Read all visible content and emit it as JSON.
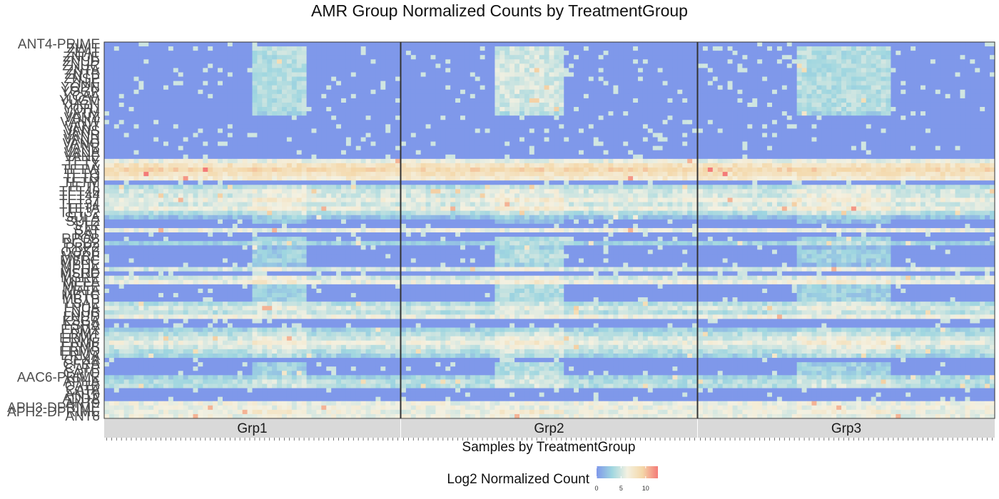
{
  "chart_data": {
    "type": "heatmap",
    "title": "AMR Group Normalized Counts by TreatmentGroup",
    "xlabel": "Samples by TreatmentGroup",
    "ylabel": "",
    "facets": [
      "Grp1",
      "Grp2",
      "Grp3"
    ],
    "samples_per_facet": 60,
    "rows": [
      "ANT4-PRIME",
      "ZWIT",
      "ZEAT",
      "ZNUE",
      "ZNUD",
      "ZNUC",
      "ZNTA",
      "ZNTB",
      "ZNSP",
      "ZNIF",
      "YODN",
      "YOGP",
      "YCAA",
      "YUGM",
      "YHGN",
      "YOHJ",
      "VATM",
      "VANY",
      "VANW",
      "VANT",
      "VANS",
      "VANR",
      "VANH",
      "VANO",
      "VANB",
      "VANA",
      "VANE",
      "TETY",
      "TETX",
      "TETW",
      "TETQ",
      "TETO",
      "TETM",
      "TETL",
      "TET40",
      "TET44",
      "TET37",
      "TET34",
      "TETA",
      "TET32",
      "SULA",
      "SUL2",
      "STR",
      "SAT",
      "RAT",
      "RPOB",
      "PGD2",
      "PBP2",
      "OQXB",
      "MPRF",
      "MVRC",
      "MPHE",
      "MPHA",
      "MSRD",
      "MSRE",
      "MEFA",
      "MEFE",
      "MATA",
      "MBTC",
      "MBTB",
      "LSAE",
      "LNUA",
      "LNUB",
      "LNUD",
      "KSGA",
      "FSRA",
      "ERMX",
      "ERMT",
      "ERMG",
      "ERMF",
      "ERMB",
      "ERMQ",
      "ERMA",
      "CFXA",
      "CFRA",
      "CATP",
      "CATQ",
      "AAC6-PRIME",
      "APHA",
      "CATB",
      "CATA",
      "ANT6",
      "ADDA",
      "ANT9",
      "APH3-DPRIME",
      "APH2-DPRIME",
      "ANT8"
    ],
    "shown_labels": [
      "ANT4-PRIME",
      "ZWIT",
      "ZEAT",
      "ZNUE",
      "ZNUD",
      "ZNUC",
      "ZNTA",
      "ZNTB",
      "ZNSP",
      "ZNIF",
      "YODN",
      "YOGP",
      "YCAA",
      "YUGM",
      "YHGN",
      "YOHJ",
      "VATM",
      "VANY",
      "VANW",
      "VANT",
      "VANS",
      "VANR",
      "VANH",
      "VANO",
      "VANB",
      "VANA",
      "VANE",
      "TETY",
      "TETX",
      "TETW",
      "TETQ",
      "TETO",
      "TETM",
      "TETL",
      "TET40",
      "TET44",
      "TET37",
      "TET34",
      "TETA",
      "TET32",
      "SULA",
      "SUL2",
      "STR",
      "SAT",
      "RAT",
      "RPOB",
      "PGD2",
      "PBP2",
      "OQXB",
      "MPRF",
      "MVRC",
      "MPHE",
      "MPHA",
      "MSRD",
      "MSRE",
      "MEFA",
      "MEFE",
      "MATA",
      "MBTC",
      "MBTB",
      "LSAE",
      "LNUA",
      "LNUB",
      "LNUD",
      "KSGA",
      "FSRA",
      "ERMX",
      "ERMT",
      "ERMG",
      "ERMF",
      "ERMB",
      "ERMQ",
      "ERMA",
      "CFXA",
      "CFRA",
      "CATP",
      "CATQ",
      "AAC6-PRIME",
      "APHA",
      "CATB",
      "CATA",
      "ANT6",
      "ADDA",
      "ANT9",
      "APH3-DPRIME",
      "APH2-DPRIME",
      "ANT8"
    ],
    "row_profiles": [
      {
        "base": 0,
        "c1": 0,
        "c2": 0,
        "c3": 0
      },
      {
        "base": 0,
        "c1": 4,
        "c2": 5,
        "c3": 4
      },
      {
        "base": 0,
        "c1": 4,
        "c2": 5,
        "c3": 4
      },
      {
        "base": 0,
        "c1": 4,
        "c2": 5,
        "c3": 4
      },
      {
        "base": 0,
        "c1": 4,
        "c2": 5,
        "c3": 4
      },
      {
        "base": 0,
        "c1": 4,
        "c2": 5,
        "c3": 4
      },
      {
        "base": 0,
        "c1": 4,
        "c2": 5,
        "c3": 4
      },
      {
        "base": 0,
        "c1": 4,
        "c2": 5,
        "c3": 4
      },
      {
        "base": 0,
        "c1": 4,
        "c2": 5,
        "c3": 4
      },
      {
        "base": 0,
        "c1": 4,
        "c2": 5,
        "c3": 4
      },
      {
        "base": 0,
        "c1": 4,
        "c2": 5,
        "c3": 4
      },
      {
        "base": 0,
        "c1": 4,
        "c2": 5,
        "c3": 4
      },
      {
        "base": 0,
        "c1": 4,
        "c2": 5,
        "c3": 4
      },
      {
        "base": 0,
        "c1": 4,
        "c2": 5,
        "c3": 4
      },
      {
        "base": 0,
        "c1": 4,
        "c2": 5,
        "c3": 4
      },
      {
        "base": 0,
        "c1": 4,
        "c2": 5,
        "c3": 4
      },
      {
        "base": 0,
        "c1": 3,
        "c2": 4,
        "c3": 3
      },
      {
        "base": 0,
        "c1": 0,
        "c2": 0,
        "c3": 0
      },
      {
        "base": 0,
        "c1": 0,
        "c2": 0,
        "c3": 0
      },
      {
        "base": 0,
        "c1": 0,
        "c2": 0,
        "c3": 0
      },
      {
        "base": 0,
        "c1": 0,
        "c2": 0,
        "c3": 0
      },
      {
        "base": 0,
        "c1": 0,
        "c2": 0,
        "c3": 0
      },
      {
        "base": 0,
        "c1": 0,
        "c2": 0,
        "c3": 0
      },
      {
        "base": 0,
        "c1": 0,
        "c2": 0,
        "c3": 0
      },
      {
        "base": 0,
        "c1": 0,
        "c2": 0,
        "c3": 0
      },
      {
        "base": 0,
        "c1": 0,
        "c2": 0,
        "c3": 0
      },
      {
        "base": 0,
        "c1": 0,
        "c2": 0,
        "c3": 0
      },
      {
        "base": 6,
        "c1": 6,
        "c2": 6,
        "c3": 6
      },
      {
        "base": 8,
        "c1": 8,
        "c2": 8,
        "c3": 8
      },
      {
        "base": 9,
        "c1": 9,
        "c2": 9,
        "c3": 9
      },
      {
        "base": 8,
        "c1": 8,
        "c2": 8,
        "c3": 8
      },
      {
        "base": 7,
        "c1": 7,
        "c2": 7,
        "c3": 7
      },
      {
        "base": 0,
        "c1": 0,
        "c2": 0,
        "c3": 0
      },
      {
        "base": 4,
        "c1": 5,
        "c2": 5,
        "c3": 5
      },
      {
        "base": 5,
        "c1": 6,
        "c2": 6,
        "c3": 6
      },
      {
        "base": 5,
        "c1": 6,
        "c2": 6,
        "c3": 6
      },
      {
        "base": 6,
        "c1": 7,
        "c2": 7,
        "c3": 7
      },
      {
        "base": 5,
        "c1": 6,
        "c2": 6,
        "c3": 6
      },
      {
        "base": 6,
        "c1": 7,
        "c2": 7,
        "c3": 7
      },
      {
        "base": 4,
        "c1": 5,
        "c2": 5,
        "c3": 5
      },
      {
        "base": 2,
        "c1": 3,
        "c2": 3,
        "c3": 3
      },
      {
        "base": 0,
        "c1": 2,
        "c2": 2,
        "c3": 2
      },
      {
        "base": 0,
        "c1": 0,
        "c2": 0,
        "c3": 0
      },
      {
        "base": 6,
        "c1": 6,
        "c2": 6,
        "c3": 6
      },
      {
        "base": 0,
        "c1": 0,
        "c2": 0,
        "c3": 0
      },
      {
        "base": 0,
        "c1": 3,
        "c2": 4,
        "c3": 3
      },
      {
        "base": 3,
        "c1": 4,
        "c2": 4,
        "c3": 4
      },
      {
        "base": 0,
        "c1": 2,
        "c2": 3,
        "c3": 2
      },
      {
        "base": 0,
        "c1": 3,
        "c2": 4,
        "c3": 3
      },
      {
        "base": 0,
        "c1": 3,
        "c2": 4,
        "c3": 3
      },
      {
        "base": 0,
        "c1": 3,
        "c2": 4,
        "c3": 3
      },
      {
        "base": 0,
        "c1": 2,
        "c2": 3,
        "c3": 2
      },
      {
        "base": 5,
        "c1": 6,
        "c2": 6,
        "c3": 6
      },
      {
        "base": 0,
        "c1": 0,
        "c2": 0,
        "c3": 0
      },
      {
        "base": 5,
        "c1": 6,
        "c2": 6,
        "c3": 6
      },
      {
        "base": 6,
        "c1": 7,
        "c2": 7,
        "c3": 7
      },
      {
        "base": 0,
        "c1": 3,
        "c2": 4,
        "c3": 3
      },
      {
        "base": 0,
        "c1": 3,
        "c2": 4,
        "c3": 3
      },
      {
        "base": 0,
        "c1": 3,
        "c2": 4,
        "c3": 3
      },
      {
        "base": 0,
        "c1": 3,
        "c2": 4,
        "c3": 3
      },
      {
        "base": 4,
        "c1": 5,
        "c2": 5,
        "c3": 5
      },
      {
        "base": 5,
        "c1": 6,
        "c2": 6,
        "c3": 6
      },
      {
        "base": 4,
        "c1": 5,
        "c2": 5,
        "c3": 5
      },
      {
        "base": 6,
        "c1": 6,
        "c2": 6,
        "c3": 6
      },
      {
        "base": 0,
        "c1": 0,
        "c2": 0,
        "c3": 0
      },
      {
        "base": 0,
        "c1": 0,
        "c2": 0,
        "c3": 0
      },
      {
        "base": 3,
        "c1": 4,
        "c2": 4,
        "c3": 4
      },
      {
        "base": 4,
        "c1": 5,
        "c2": 5,
        "c3": 5
      },
      {
        "base": 5,
        "c1": 6,
        "c2": 6,
        "c3": 6
      },
      {
        "base": 6,
        "c1": 7,
        "c2": 7,
        "c3": 7
      },
      {
        "base": 5,
        "c1": 6,
        "c2": 6,
        "c3": 6
      },
      {
        "base": 4,
        "c1": 5,
        "c2": 5,
        "c3": 5
      },
      {
        "base": 3,
        "c1": 4,
        "c2": 4,
        "c3": 4
      },
      {
        "base": 0,
        "c1": 0,
        "c2": 0,
        "c3": 0
      },
      {
        "base": 0,
        "c1": 3,
        "c2": 4,
        "c3": 3
      },
      {
        "base": 0,
        "c1": 3,
        "c2": 4,
        "c3": 3
      },
      {
        "base": 0,
        "c1": 3,
        "c2": 4,
        "c3": 3
      },
      {
        "base": 3,
        "c1": 4,
        "c2": 5,
        "c3": 4
      },
      {
        "base": 4,
        "c1": 5,
        "c2": 5,
        "c3": 5
      },
      {
        "base": 4,
        "c1": 5,
        "c2": 5,
        "c3": 5
      },
      {
        "base": 0,
        "c1": 0,
        "c2": 0,
        "c3": 0
      },
      {
        "base": 0,
        "c1": 0,
        "c2": 0,
        "c3": 0
      },
      {
        "base": 0,
        "c1": 0,
        "c2": 0,
        "c3": 0
      },
      {
        "base": 6,
        "c1": 6,
        "c2": 6,
        "c3": 6
      },
      {
        "base": 6,
        "c1": 6,
        "c2": 6,
        "c3": 6
      },
      {
        "base": 6,
        "c1": 7,
        "c2": 7,
        "c3": 7
      },
      {
        "base": 6,
        "c1": 6,
        "c2": 6,
        "c3": 6
      }
    ],
    "clusters": {
      "c1": [
        [
          30,
          40
        ]
      ],
      "c2": [
        [
          19,
          32
        ]
      ],
      "c3": [
        [
          20,
          38
        ]
      ]
    },
    "legend": {
      "title": "Log2 Normalized Count",
      "ticks": [
        0,
        5,
        10
      ],
      "range": [
        0,
        12.5
      ],
      "placement": "bottom",
      "colors": [
        "#7f98ea",
        "#9fd6e0",
        "#f4f1e1",
        "#f4d7a8",
        "#f47b78"
      ]
    },
    "strip_fill": "#d9d9d9",
    "panel_border": "#333333"
  }
}
